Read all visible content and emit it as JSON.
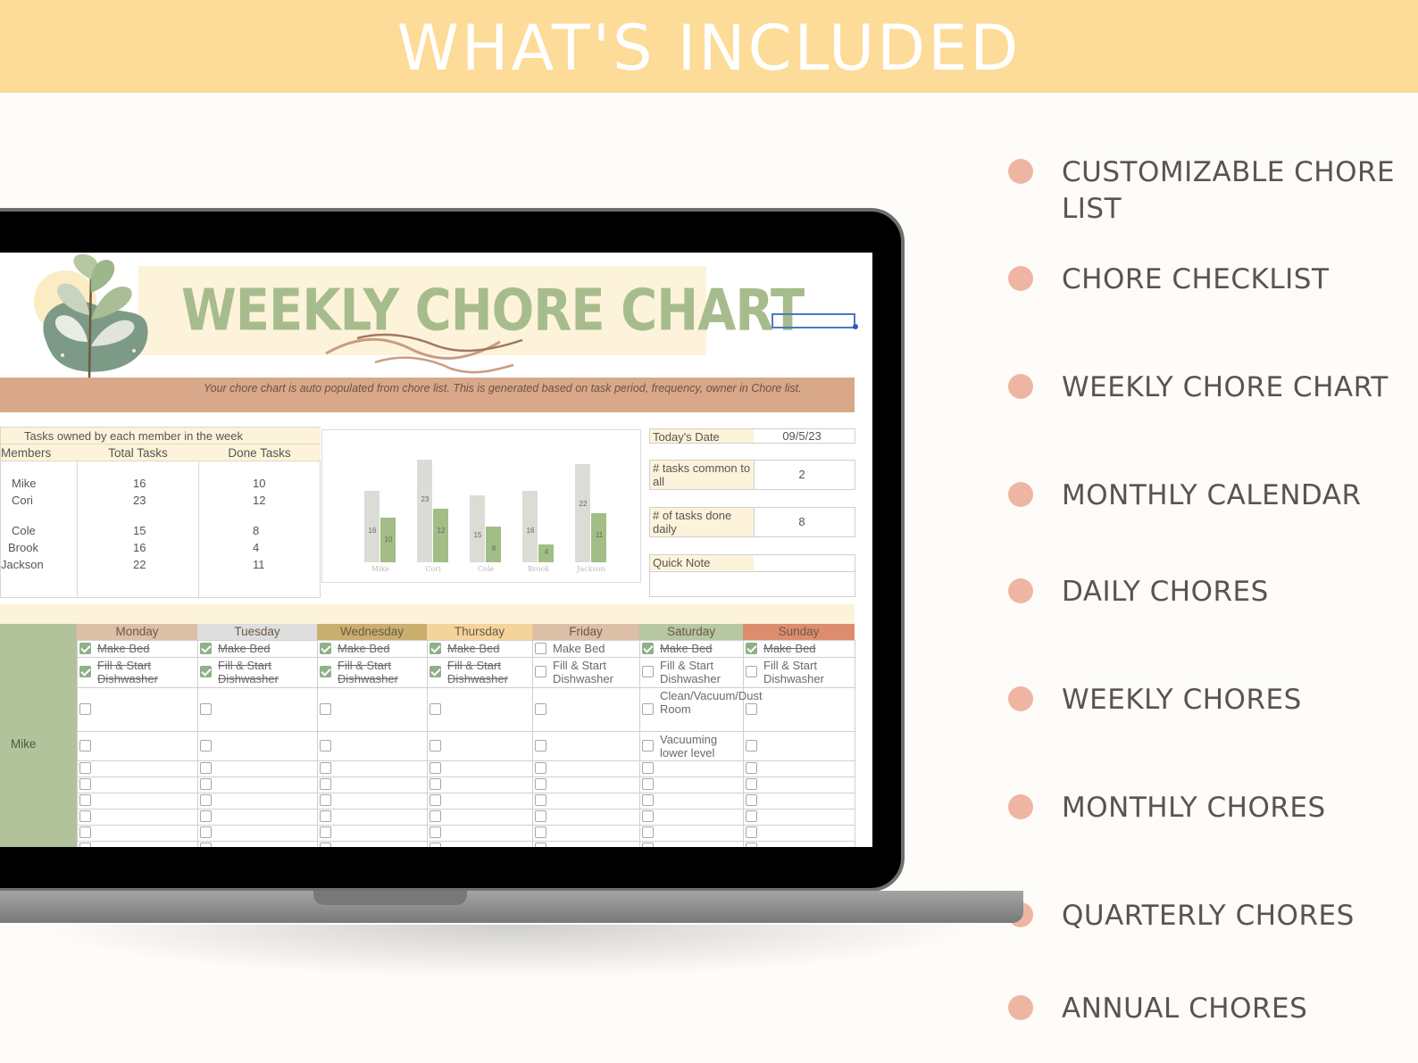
{
  "banner": {
    "title": "WHAT'S INCLUDED"
  },
  "features": [
    {
      "label": "CUSTOMIZABLE CHORE LIST"
    },
    {
      "label": "CHORE CHECKLIST"
    },
    {
      "label": "WEEKLY CHORE CHART"
    },
    {
      "label": "MONTHLY CALENDAR"
    },
    {
      "label": "DAILY CHORES"
    },
    {
      "label": "WEEKLY CHORES"
    },
    {
      "label": "MONTHLY CHORES"
    },
    {
      "label": "QUARTERLY CHORES"
    },
    {
      "label": "ANNUAL CHORES"
    }
  ],
  "sheet": {
    "title": "WEEKLY CHORE CHART",
    "note": "Your chore chart is auto populated from chore list. This is generated based on  task period, frequency, owner in Chore list.",
    "members_table": {
      "caption": "Tasks owned by each member in the week",
      "headers": [
        "Members",
        "Total Tasks",
        "Done Tasks"
      ],
      "rows": [
        {
          "name": "Mike",
          "total": "16",
          "done": "10"
        },
        {
          "name": "Cori",
          "total": "23",
          "done": "12"
        },
        {
          "name": "Cole",
          "total": "15",
          "done": "8"
        },
        {
          "name": "Brook",
          "total": "16",
          "done": "4"
        },
        {
          "name": "Jackson",
          "total": "22",
          "done": "11"
        }
      ]
    },
    "info": {
      "today_label": "Today's Date",
      "today_value": "09/5/23",
      "common_label": "# tasks common to all",
      "common_value": "2",
      "daily_label": "# of tasks done daily",
      "daily_value": "8",
      "quick_note_label": "Quick Note"
    },
    "weekly": {
      "member": "Mike",
      "days": [
        {
          "name": "Monday",
          "color": "#dcbfa6"
        },
        {
          "name": "Tuesday",
          "color": "#dedede"
        },
        {
          "name": "Wednesday",
          "color": "#c9ae6e"
        },
        {
          "name": "Thursday",
          "color": "#f4d49a"
        },
        {
          "name": "Friday",
          "color": "#dcbfa6"
        },
        {
          "name": "Saturday",
          "color": "#b6c7a2"
        },
        {
          "name": "Sunday",
          "color": "#de8c6e"
        }
      ],
      "tasks": {
        "make_bed": "Make Bed",
        "dishwasher": "Fill & Start Dishwasher",
        "clean": "Clean/Vacuum/Dust Room",
        "vacuum": "Vacuuming lower level"
      }
    }
  },
  "chart_data": {
    "type": "bar",
    "categories": [
      "Mike",
      "Cori",
      "Cole",
      "Brook",
      "Jackson"
    ],
    "series": [
      {
        "values": [
          16,
          23,
          15,
          16,
          22
        ]
      },
      {
        "values": [
          10,
          12,
          8,
          4,
          11
        ]
      }
    ],
    "ylim": [
      0,
      25
    ],
    "colors": [
      "#dcdcd6",
      "#a2bd86"
    ]
  }
}
